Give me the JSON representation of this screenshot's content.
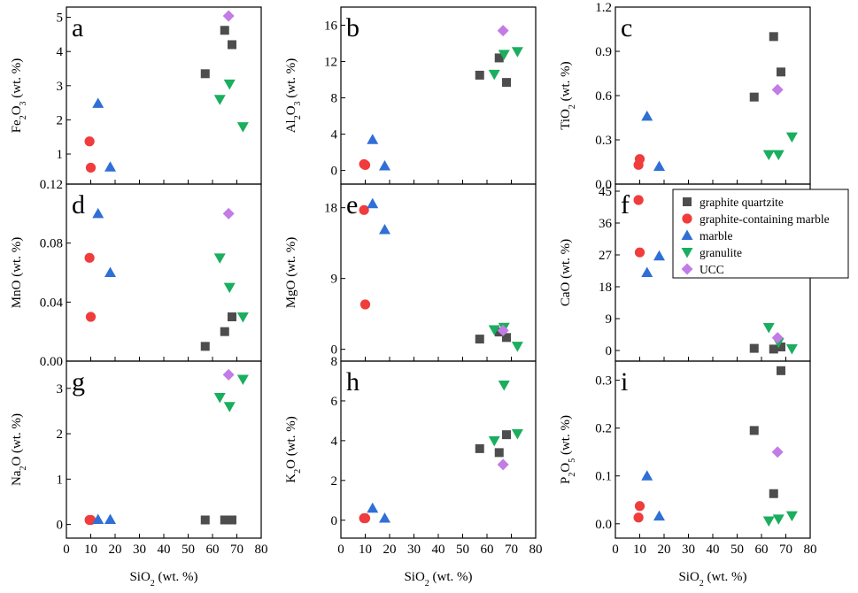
{
  "figure": {
    "series_styles": {
      "graphite quartzite": {
        "marker": "square",
        "color": "#4d4d4d"
      },
      "graphite-containing marble": {
        "marker": "circle",
        "color": "#f03c3c"
      },
      "marble": {
        "marker": "triangle-up",
        "color": "#2f6fd6"
      },
      "granulite": {
        "marker": "triangle-down",
        "color": "#1aae5e"
      },
      "UCC": {
        "marker": "diamond",
        "color": "#c27ce6"
      }
    },
    "legend": {
      "placement": "inside panel f, top-right",
      "entries": [
        "graphite quartzite",
        "graphite-containing marble",
        "marble",
        "granulite",
        "UCC"
      ]
    }
  },
  "chart_data": [
    {
      "panel": "a",
      "type": "scatter",
      "ylabel_parts": [
        {
          "t": "Fe"
        },
        {
          "t": "2",
          "sub": true
        },
        {
          "t": "O"
        },
        {
          "t": "3",
          "sub": true
        },
        {
          "t": " (wt. %)"
        }
      ],
      "xlabel_parts": [],
      "ylim": [
        0.12,
        5.3
      ],
      "yticks": [
        1,
        2,
        3,
        4,
        5
      ],
      "ytick_labels": [
        "1",
        "2",
        "3",
        "4",
        "5"
      ],
      "xlim": [
        0,
        80
      ],
      "xticks": [
        0,
        10,
        20,
        30,
        40,
        50,
        60,
        70,
        80
      ],
      "xtick_labels": [],
      "series": [
        {
          "name": "graphite quartzite",
          "points": [
            [
              57,
              3.35
            ],
            [
              65,
              4.62
            ],
            [
              68,
              4.2
            ]
          ]
        },
        {
          "name": "graphite-containing marble",
          "points": [
            [
              9.5,
              1.37
            ],
            [
              10,
              0.6
            ]
          ]
        },
        {
          "name": "marble",
          "points": [
            [
              13,
              2.48
            ],
            [
              18,
              0.62
            ]
          ]
        },
        {
          "name": "granulite",
          "points": [
            [
              63,
              2.6
            ],
            [
              67,
              3.05
            ],
            [
              72.5,
              1.8
            ]
          ]
        },
        {
          "name": "UCC",
          "points": [
            [
              66.6,
              5.04
            ]
          ]
        }
      ]
    },
    {
      "panel": "b",
      "type": "scatter",
      "ylabel_parts": [
        {
          "t": "Al"
        },
        {
          "t": "2",
          "sub": true
        },
        {
          "t": "O"
        },
        {
          "t": "3",
          "sub": true
        },
        {
          "t": " (wt. %)"
        }
      ],
      "xlabel_parts": [],
      "ylim": [
        -1.5,
        18
      ],
      "yticks": [
        0,
        4,
        8,
        12,
        16
      ],
      "ytick_labels": [
        "0",
        "4",
        "8",
        "12",
        "16"
      ],
      "xlim": [
        0,
        80
      ],
      "xticks": [
        0,
        10,
        20,
        30,
        40,
        50,
        60,
        70,
        80
      ],
      "xtick_labels": [],
      "series": [
        {
          "name": "graphite quartzite",
          "points": [
            [
              57,
              10.5
            ],
            [
              65,
              12.4
            ],
            [
              68,
              9.7
            ]
          ]
        },
        {
          "name": "graphite-containing marble",
          "points": [
            [
              9.5,
              0.7
            ],
            [
              10,
              0.6
            ]
          ]
        },
        {
          "name": "marble",
          "points": [
            [
              13,
              3.4
            ],
            [
              18,
              0.5
            ]
          ]
        },
        {
          "name": "granulite",
          "points": [
            [
              63,
              10.6
            ],
            [
              67,
              12.8
            ],
            [
              72.5,
              13.1
            ]
          ]
        },
        {
          "name": "UCC",
          "points": [
            [
              66.6,
              15.4
            ]
          ]
        }
      ]
    },
    {
      "panel": "c",
      "type": "scatter",
      "ylabel_parts": [
        {
          "t": "TiO"
        },
        {
          "t": "2",
          "sub": true
        },
        {
          "t": " (wt. %)"
        }
      ],
      "xlabel_parts": [],
      "ylim": [
        0,
        1.2
      ],
      "yticks": [
        0,
        0.3,
        0.6,
        0.9,
        1.2
      ],
      "ytick_labels": [
        "0.0",
        "0.3",
        "0.6",
        "0.9",
        "1.2"
      ],
      "xlim": [
        0,
        80
      ],
      "xticks": [
        0,
        10,
        20,
        30,
        40,
        50,
        60,
        70,
        80
      ],
      "xtick_labels": [],
      "series": [
        {
          "name": "graphite quartzite",
          "points": [
            [
              57,
              0.59
            ],
            [
              65,
              1.0
            ],
            [
              68,
              0.76
            ]
          ]
        },
        {
          "name": "graphite-containing marble",
          "points": [
            [
              9.5,
              0.13
            ],
            [
              10,
              0.17
            ]
          ]
        },
        {
          "name": "marble",
          "points": [
            [
              13,
              0.46
            ],
            [
              18,
              0.12
            ]
          ]
        },
        {
          "name": "granulite",
          "points": [
            [
              63,
              0.2
            ],
            [
              67,
              0.2
            ],
            [
              72.5,
              0.32
            ]
          ]
        },
        {
          "name": "UCC",
          "points": [
            [
              66.6,
              0.64
            ]
          ]
        }
      ]
    },
    {
      "panel": "d",
      "type": "scatter",
      "ylabel_parts": [
        {
          "t": "MnO (wt. %)"
        }
      ],
      "xlabel_parts": [],
      "ylim": [
        0,
        0.12
      ],
      "yticks": [
        0,
        0.04,
        0.08,
        0.12
      ],
      "ytick_labels": [
        "0.00",
        "0.04",
        "0.08",
        "0.12"
      ],
      "xlim": [
        0,
        80
      ],
      "xticks": [
        0,
        10,
        20,
        30,
        40,
        50,
        60,
        70,
        80
      ],
      "xtick_labels": [],
      "series": [
        {
          "name": "graphite quartzite",
          "points": [
            [
              57,
              0.01
            ],
            [
              65,
              0.02
            ],
            [
              68,
              0.03
            ]
          ]
        },
        {
          "name": "graphite-containing marble",
          "points": [
            [
              9.5,
              0.07
            ],
            [
              10,
              0.03
            ]
          ]
        },
        {
          "name": "marble",
          "points": [
            [
              13,
              0.1
            ],
            [
              18,
              0.06
            ]
          ]
        },
        {
          "name": "granulite",
          "points": [
            [
              63,
              0.07
            ],
            [
              67,
              0.05
            ],
            [
              72.5,
              0.03
            ]
          ]
        },
        {
          "name": "UCC",
          "points": [
            [
              66.6,
              0.1
            ]
          ]
        }
      ]
    },
    {
      "panel": "e",
      "type": "scatter",
      "ylabel_parts": [
        {
          "t": "MgO (wt. %)"
        }
      ],
      "xlabel_parts": [],
      "ylim": [
        -1.5,
        21
      ],
      "yticks": [
        0,
        9,
        18
      ],
      "ytick_labels": [
        "0",
        "9",
        "18"
      ],
      "xlim": [
        0,
        80
      ],
      "xticks": [
        0,
        10,
        20,
        30,
        40,
        50,
        60,
        70,
        80
      ],
      "xtick_labels": [],
      "series": [
        {
          "name": "graphite quartzite",
          "points": [
            [
              57,
              1.3
            ],
            [
              65,
              2.2
            ],
            [
              68,
              1.5
            ]
          ]
        },
        {
          "name": "graphite-containing marble",
          "points": [
            [
              9.5,
              17.7
            ],
            [
              10,
              5.7
            ]
          ]
        },
        {
          "name": "marble",
          "points": [
            [
              13,
              18.5
            ],
            [
              18,
              15.2
            ]
          ]
        },
        {
          "name": "granulite",
          "points": [
            [
              63,
              2.5
            ],
            [
              67,
              2.8
            ],
            [
              72.5,
              0.4
            ]
          ]
        },
        {
          "name": "UCC",
          "points": [
            [
              66.6,
              2.4
            ]
          ]
        }
      ]
    },
    {
      "panel": "f",
      "type": "scatter",
      "ylabel_parts": [
        {
          "t": "CaO (wt. %)"
        }
      ],
      "xlabel_parts": [],
      "ylim": [
        -3,
        47
      ],
      "yticks": [
        0,
        9,
        18,
        27,
        36,
        45
      ],
      "ytick_labels": [
        "0",
        "9",
        "18",
        "27",
        "36",
        "45"
      ],
      "xlim": [
        0,
        80
      ],
      "xticks": [
        0,
        10,
        20,
        30,
        40,
        50,
        60,
        70,
        80
      ],
      "xtick_labels": [],
      "series": [
        {
          "name": "graphite quartzite",
          "points": [
            [
              57,
              0.6
            ],
            [
              65,
              0.4
            ],
            [
              68,
              1.0
            ]
          ]
        },
        {
          "name": "graphite-containing marble",
          "points": [
            [
              9.5,
              42.5
            ],
            [
              10,
              27.7
            ]
          ]
        },
        {
          "name": "marble",
          "points": [
            [
              13,
              22
            ],
            [
              18,
              26.7
            ]
          ]
        },
        {
          "name": "granulite",
          "points": [
            [
              63,
              6.5
            ],
            [
              67,
              2.3
            ],
            [
              72.5,
              0.5
            ]
          ]
        },
        {
          "name": "UCC",
          "points": [
            [
              66.6,
              3.6
            ]
          ]
        }
      ]
    },
    {
      "panel": "g",
      "type": "scatter",
      "ylabel_parts": [
        {
          "t": "Na"
        },
        {
          "t": "2",
          "sub": true
        },
        {
          "t": "O (wt. %)"
        }
      ],
      "xlabel_parts": [
        {
          "t": "SiO"
        },
        {
          "t": "2",
          "sub": true
        },
        {
          "t": " (wt. %)"
        }
      ],
      "ylim": [
        -0.3,
        3.6
      ],
      "yticks": [
        0,
        1,
        2,
        3
      ],
      "ytick_labels": [
        "0",
        "1",
        "2",
        "3"
      ],
      "xlim": [
        0,
        80
      ],
      "xticks": [
        0,
        10,
        20,
        30,
        40,
        50,
        60,
        70,
        80
      ],
      "xtick_labels": [
        "0",
        "10",
        "20",
        "30",
        "40",
        "50",
        "60",
        "70",
        "80"
      ],
      "series": [
        {
          "name": "graphite quartzite",
          "points": [
            [
              57,
              0.1
            ],
            [
              65,
              0.1
            ],
            [
              68,
              0.1
            ]
          ]
        },
        {
          "name": "graphite-containing marble",
          "points": [
            [
              9.5,
              0.1
            ],
            [
              10,
              0.1
            ]
          ]
        },
        {
          "name": "marble",
          "points": [
            [
              13,
              0.11
            ],
            [
              18,
              0.11
            ]
          ]
        },
        {
          "name": "granulite",
          "points": [
            [
              63,
              2.8
            ],
            [
              67,
              2.6
            ],
            [
              72.5,
              3.2
            ]
          ]
        },
        {
          "name": "UCC",
          "points": [
            [
              66.6,
              3.3
            ]
          ]
        }
      ]
    },
    {
      "panel": "h",
      "type": "scatter",
      "ylabel_parts": [
        {
          "t": "K"
        },
        {
          "t": "2",
          "sub": true
        },
        {
          "t": "O (wt. %)"
        }
      ],
      "xlabel_parts": [
        {
          "t": "SiO"
        },
        {
          "t": "2",
          "sub": true
        },
        {
          "t": " (wt. %)"
        }
      ],
      "ylim": [
        -0.9,
        8
      ],
      "yticks": [
        0,
        2,
        4,
        6,
        8
      ],
      "ytick_labels": [
        "0",
        "2",
        "4",
        "6",
        "8"
      ],
      "xlim": [
        0,
        80
      ],
      "xticks": [
        0,
        10,
        20,
        30,
        40,
        50,
        60,
        70,
        80
      ],
      "xtick_labels": [
        "0",
        "10",
        "20",
        "30",
        "40",
        "50",
        "60",
        "70",
        "80"
      ],
      "series": [
        {
          "name": "graphite quartzite",
          "points": [
            [
              57,
              3.6
            ],
            [
              65,
              3.4
            ],
            [
              68,
              4.3
            ]
          ]
        },
        {
          "name": "graphite-containing marble",
          "points": [
            [
              9.5,
              0.1
            ],
            [
              10,
              0.1
            ]
          ]
        },
        {
          "name": "marble",
          "points": [
            [
              13,
              0.6
            ],
            [
              18,
              0.1
            ]
          ]
        },
        {
          "name": "granulite",
          "points": [
            [
              63,
              4.0
            ],
            [
              67,
              6.8
            ],
            [
              72.5,
              4.35
            ]
          ]
        },
        {
          "name": "UCC",
          "points": [
            [
              66.6,
              2.8
            ]
          ]
        }
      ]
    },
    {
      "panel": "i",
      "type": "scatter",
      "ylabel_parts": [
        {
          "t": "P"
        },
        {
          "t": "2",
          "sub": true
        },
        {
          "t": "O"
        },
        {
          "t": "5",
          "sub": true
        },
        {
          "t": " (wt. %)"
        }
      ],
      "xlabel_parts": [
        {
          "t": "SiO"
        },
        {
          "t": "2",
          "sub": true
        },
        {
          "t": " (wt. %)"
        }
      ],
      "ylim": [
        -0.03,
        0.34
      ],
      "yticks": [
        0,
        0.1,
        0.2,
        0.3
      ],
      "ytick_labels": [
        "0.0",
        "0.1",
        "0.2",
        "0.3"
      ],
      "xlim": [
        0,
        80
      ],
      "xticks": [
        0,
        10,
        20,
        30,
        40,
        50,
        60,
        70,
        80
      ],
      "xtick_labels": [
        "0",
        "10",
        "20",
        "30",
        "40",
        "50",
        "60",
        "70",
        "80"
      ],
      "series": [
        {
          "name": "graphite quartzite",
          "points": [
            [
              57,
              0.195
            ],
            [
              65,
              0.063
            ],
            [
              68,
              0.32
            ]
          ]
        },
        {
          "name": "graphite-containing marble",
          "points": [
            [
              9.5,
              0.013
            ],
            [
              10,
              0.037
            ]
          ]
        },
        {
          "name": "marble",
          "points": [
            [
              13,
              0.1
            ],
            [
              18,
              0.016
            ]
          ]
        },
        {
          "name": "granulite",
          "points": [
            [
              63,
              0.006
            ],
            [
              67,
              0.01
            ],
            [
              72.5,
              0.017
            ]
          ]
        },
        {
          "name": "UCC",
          "points": [
            [
              66.6,
              0.15
            ]
          ]
        }
      ]
    }
  ]
}
